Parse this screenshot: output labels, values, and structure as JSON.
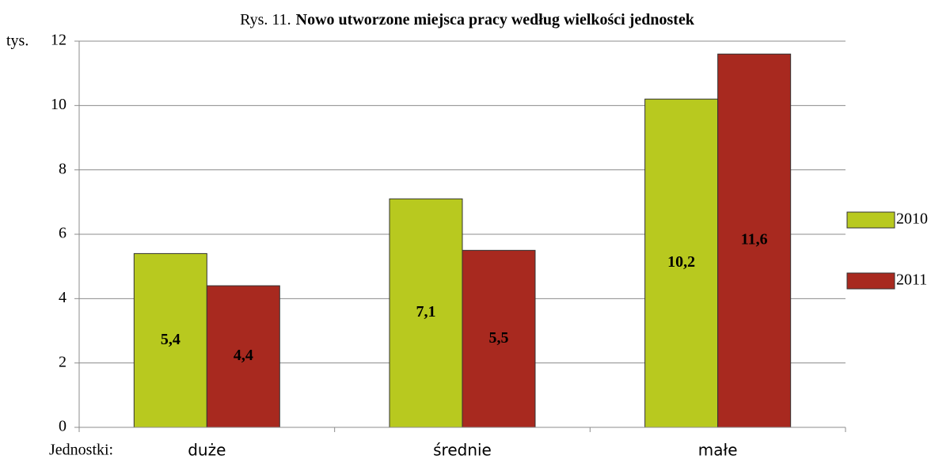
{
  "chart_data": {
    "type": "bar",
    "title_prefix": "Rys. 11.",
    "title": "Nowo utworzone miejsca pracy według wielkości jednostek",
    "y_unit": "tys.",
    "x_label": "Jednostki:",
    "categories": [
      "duże",
      "średnie",
      "małe"
    ],
    "series": [
      {
        "name": "2010",
        "color": "#b8c91f",
        "values": [
          5.4,
          7.1,
          10.2
        ],
        "value_labels": [
          "5,4",
          "7,1",
          "10,2"
        ]
      },
      {
        "name": "2011",
        "color": "#a8291f",
        "values": [
          4.4,
          5.5,
          11.6
        ],
        "value_labels": [
          "4,4",
          "5,5",
          "11,6"
        ]
      }
    ],
    "ylim": [
      0,
      12
    ],
    "yticks": [
      0,
      2,
      4,
      6,
      8,
      10,
      12
    ],
    "grid": true,
    "legend": "right"
  }
}
